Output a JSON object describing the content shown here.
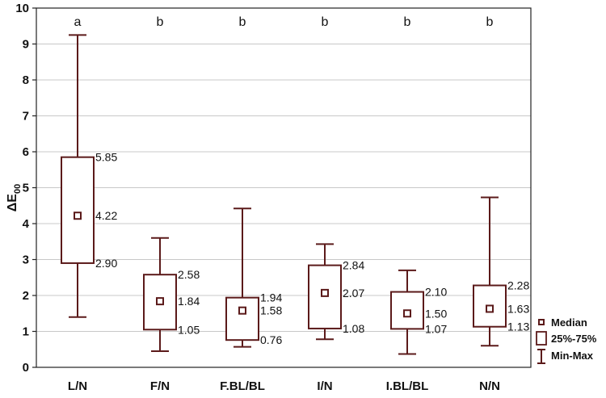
{
  "chart_data": {
    "type": "boxplot",
    "ylabel": "ΔE",
    "ylabel_sub": "00",
    "ylim": [
      0,
      10
    ],
    "yticks": [
      0,
      1,
      2,
      3,
      4,
      5,
      6,
      7,
      8,
      9,
      10
    ],
    "grid": true,
    "categories": [
      "L/N",
      "F/N",
      "F.BL/BL",
      "I/N",
      "I.BL/BL",
      "N/N"
    ],
    "groups": [
      "a",
      "b",
      "b",
      "b",
      "b",
      "b"
    ],
    "median": [
      4.22,
      1.84,
      1.58,
      2.07,
      1.5,
      1.63
    ],
    "median_labels": [
      "4.22",
      "1.84",
      "1.58",
      "2.07",
      "1.50",
      "1.63"
    ],
    "q1": [
      2.9,
      1.05,
      0.76,
      1.08,
      1.07,
      1.13
    ],
    "q1_labels": [
      "2.90",
      "1.05",
      "0.76",
      "1.08",
      "1.07",
      "1.13"
    ],
    "q3": [
      5.85,
      2.58,
      1.94,
      2.84,
      2.1,
      2.28
    ],
    "q3_labels": [
      "5.85",
      "2.58",
      "1.94",
      "2.84",
      "2.10",
      "2.28"
    ],
    "min": [
      1.4,
      0.45,
      0.57,
      0.78,
      0.37,
      0.6
    ],
    "max": [
      9.25,
      3.6,
      4.42,
      3.43,
      2.7,
      4.73
    ],
    "legend": {
      "position": "bottom-right",
      "items": [
        {
          "symbol": "median",
          "label": "Median"
        },
        {
          "symbol": "box",
          "label": "25%-75%"
        },
        {
          "symbol": "whisker",
          "label": "Min-Max"
        }
      ]
    },
    "colors": {
      "box": "#5b1a1a",
      "axis": "#222222",
      "grid": "#c8c8c8"
    }
  }
}
